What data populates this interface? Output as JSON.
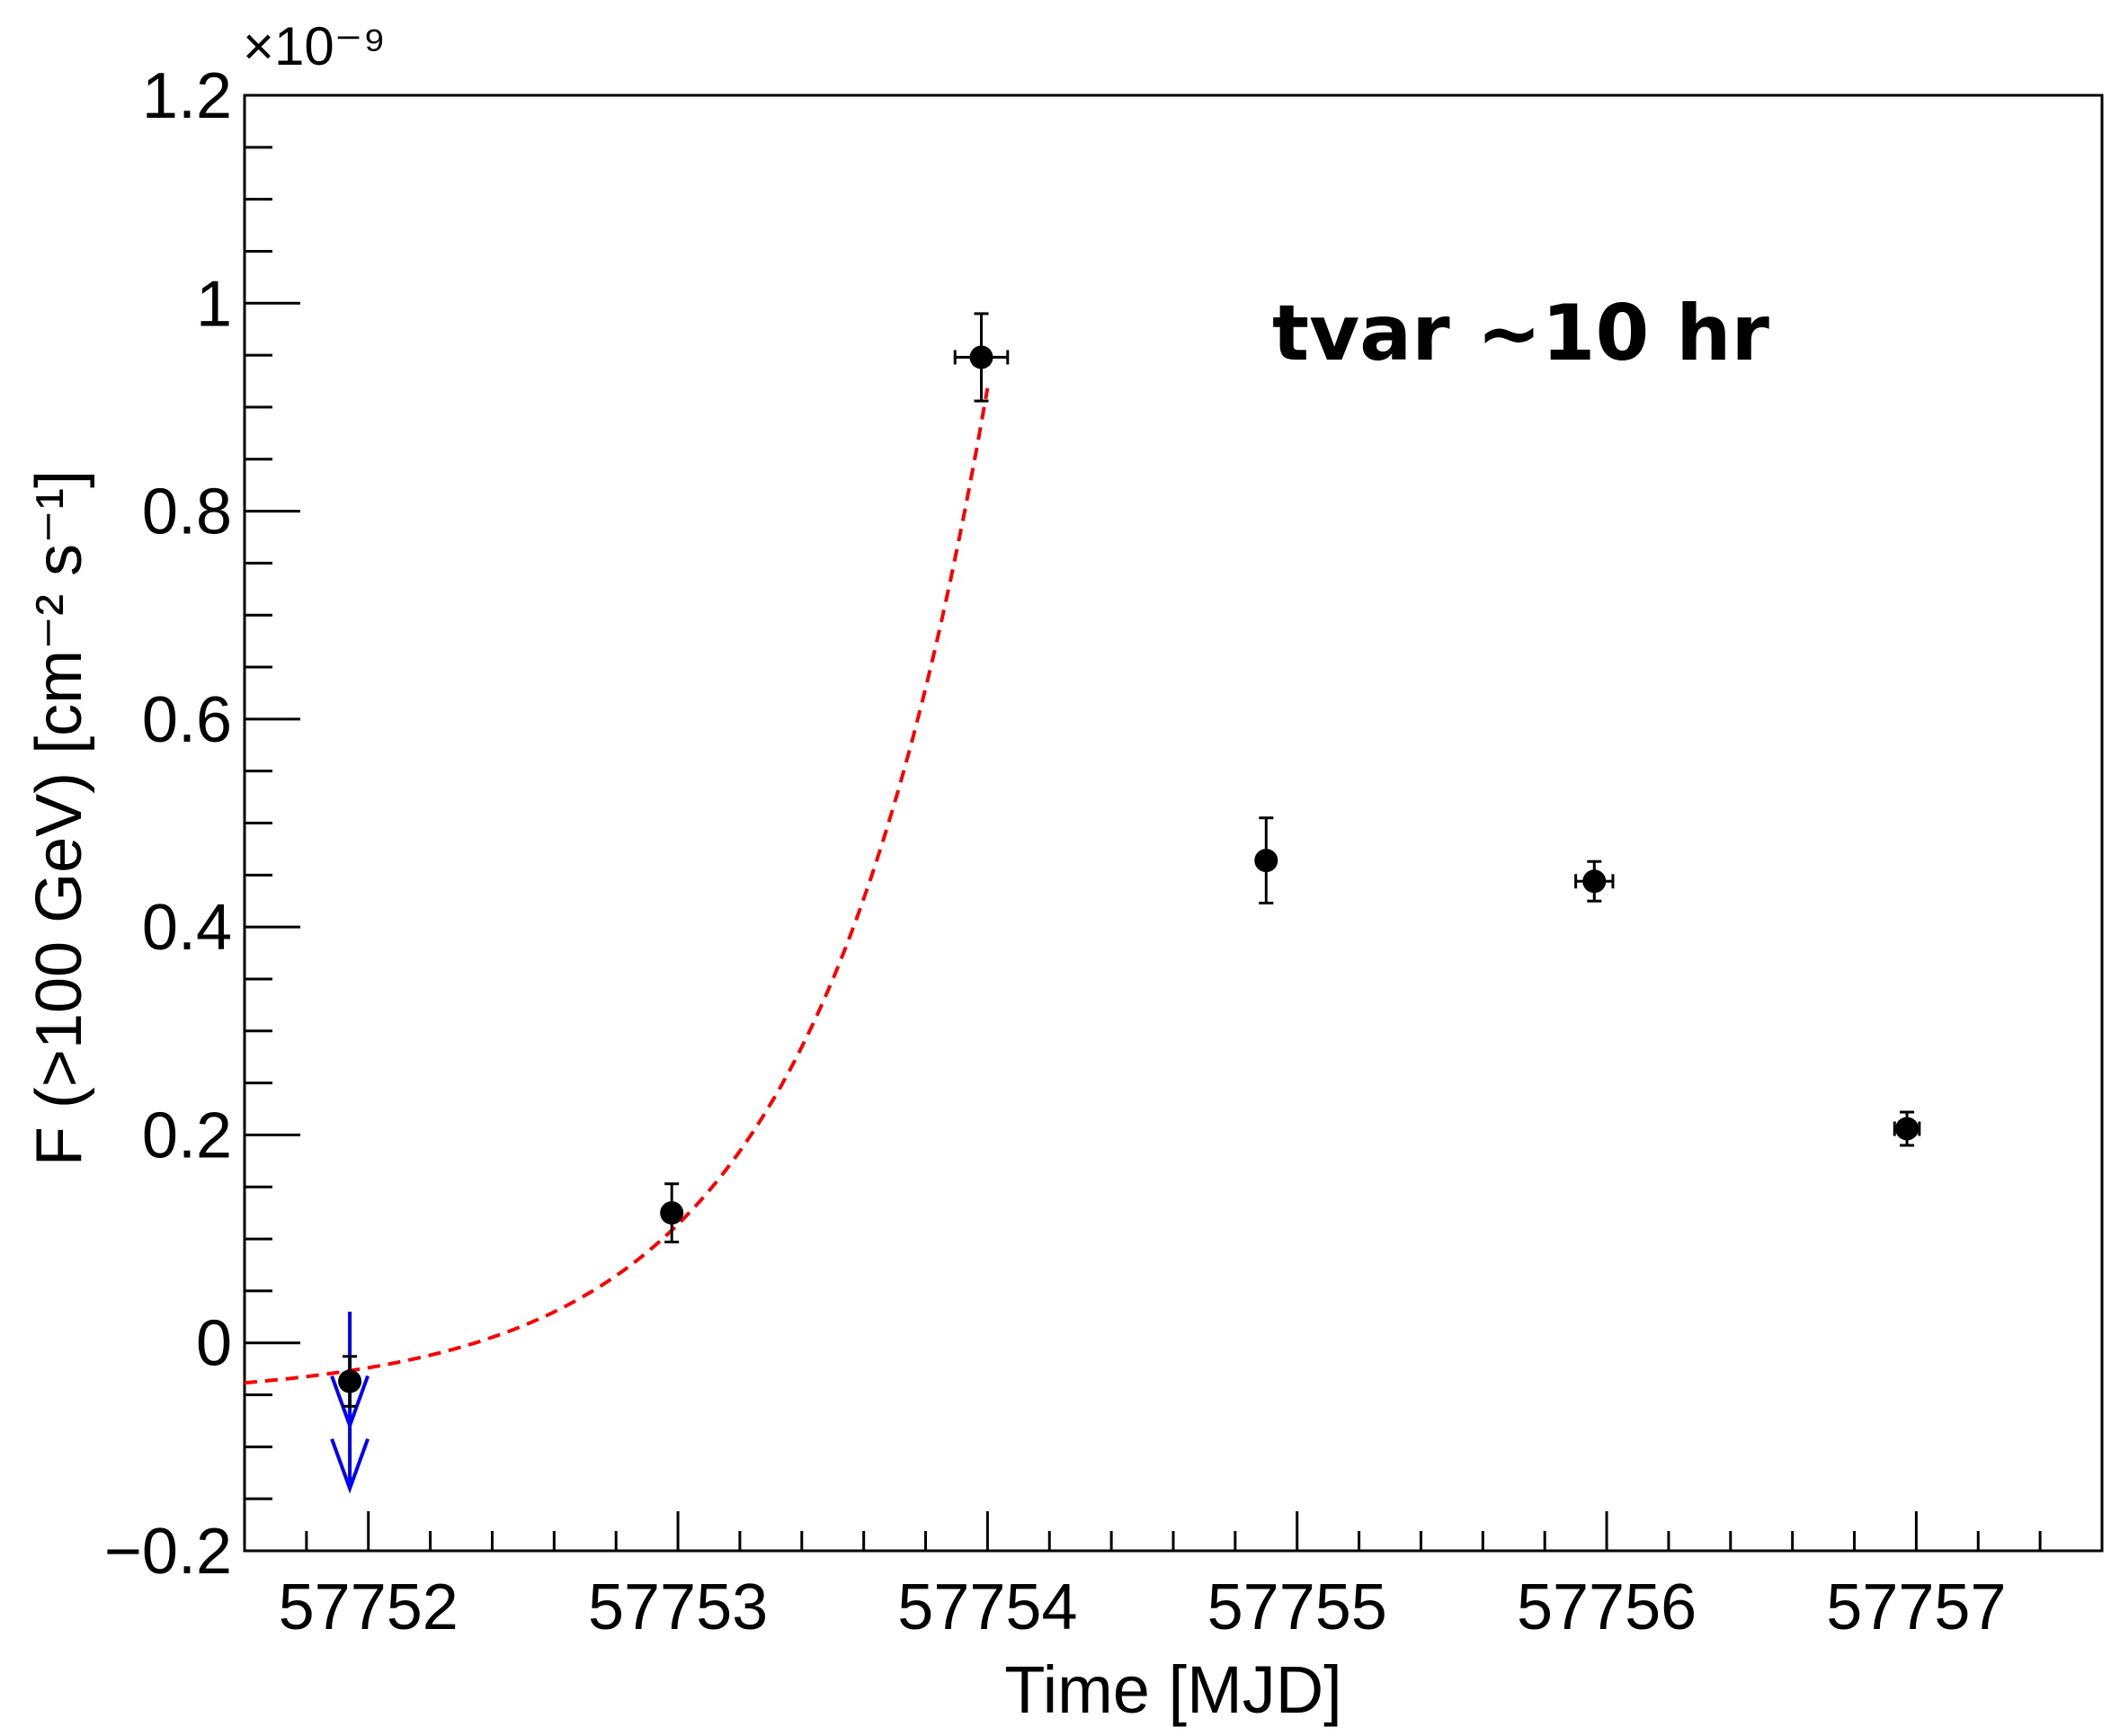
{
  "chart_data": {
    "type": "scatter",
    "title": "",
    "annotation": "tvar ~10 hr",
    "xlabel": "Time [MJD]",
    "ylabel": "F (>100 GeV) [cm⁻² s⁻¹]",
    "y_multiplier_label": "×10⁻⁹",
    "xlim": [
      57751.6,
      57757.6
    ],
    "ylim": [
      -0.2,
      1.2
    ],
    "x_ticks": [
      57752,
      57753,
      57754,
      57755,
      57756,
      57757
    ],
    "x_tick_labels": [
      "57752",
      "57753",
      "57754",
      "57755",
      "57756",
      "57757"
    ],
    "y_ticks": [
      -0.2,
      0,
      0.2,
      0.4,
      0.6,
      0.8,
      1,
      1.2
    ],
    "y_tick_labels": [
      "−0.2",
      "0",
      "0.2",
      "0.4",
      "0.6",
      "0.8",
      "1",
      "1.2"
    ],
    "series": [
      {
        "name": "flux points",
        "color": "#000000",
        "points": [
          {
            "x": 57751.94,
            "y": -0.037,
            "yerr": 0.024,
            "xerr": 0
          },
          {
            "x": 57752.98,
            "y": 0.125,
            "yerr": 0.028,
            "xerr": 0
          },
          {
            "x": 57753.98,
            "y": 0.948,
            "yerr": 0.042,
            "xerr": 0.085
          },
          {
            "x": 57754.9,
            "y": 0.464,
            "yerr": 0.041,
            "xerr": 0
          },
          {
            "x": 57755.96,
            "y": 0.444,
            "yerr": 0.019,
            "xerr": 0.06
          },
          {
            "x": 57756.97,
            "y": 0.206,
            "yerr": 0.016,
            "xerr": 0.04
          }
        ]
      },
      {
        "name": "upper limit",
        "color": "#0000ff",
        "points": [
          {
            "x": 57751.94,
            "y": 0.03,
            "y_end": -0.14
          }
        ]
      },
      {
        "name": "exponential fit",
        "color": "#ff0000",
        "style": "dashed",
        "function": "A*exp((t-t0)/tau)+C",
        "params": {
          "A": 0.1608,
          "tau": 0.5673,
          "C": -0.0525,
          "t0": 57752.98
        },
        "x_range": [
          57751.6,
          57754.0
        ]
      }
    ]
  }
}
